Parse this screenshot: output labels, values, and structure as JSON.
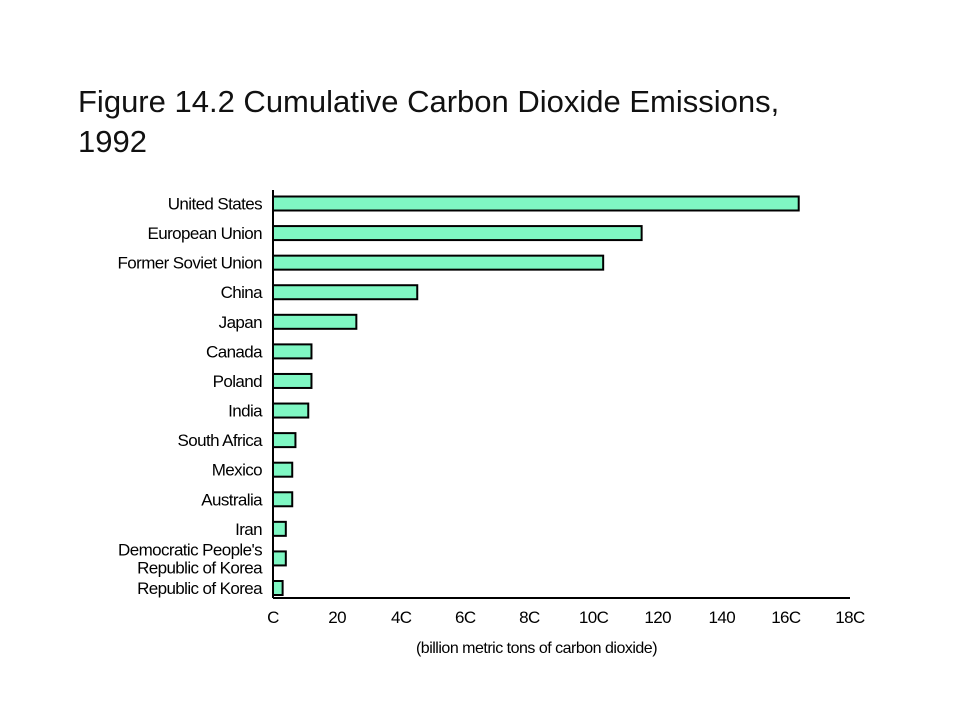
{
  "title_lines": [
    "Figure 14.2 Cumulative Carbon Dioxide Emissions,",
    "1992"
  ],
  "colors": {
    "bar_fill": "#7ff7c3",
    "bar_stroke": "#000000",
    "axis": "#000000"
  },
  "chart_data": {
    "type": "bar",
    "orientation": "horizontal",
    "title": "Figure 14.2 Cumulative Carbon Dioxide Emissions, 1992",
    "xlabel": "(billion metric tons of carbon dioxide)",
    "ylabel": "",
    "xlim": [
      0,
      180
    ],
    "xticks": [
      0,
      20,
      40,
      60,
      80,
      100,
      120,
      140,
      160,
      180
    ],
    "xtick_labels": [
      "C",
      "20",
      "4C",
      "6C",
      "8C",
      "10C",
      "120",
      "140",
      "16C",
      "18C"
    ],
    "grid": false,
    "categories": [
      [
        "United States"
      ],
      [
        "European Union"
      ],
      [
        "Former Soviet Union"
      ],
      [
        "China"
      ],
      [
        "Japan"
      ],
      [
        "Canada"
      ],
      [
        "Poland"
      ],
      [
        "India"
      ],
      [
        "South Africa"
      ],
      [
        "Mexico"
      ],
      [
        "Australia"
      ],
      [
        "Iran"
      ],
      [
        "Democratic People's",
        "Republic of Korea"
      ],
      [
        "Republic of Korea"
      ]
    ],
    "values": [
      164,
      115,
      103,
      45,
      26,
      12,
      12,
      11,
      7,
      6,
      6,
      4,
      4,
      3
    ]
  }
}
